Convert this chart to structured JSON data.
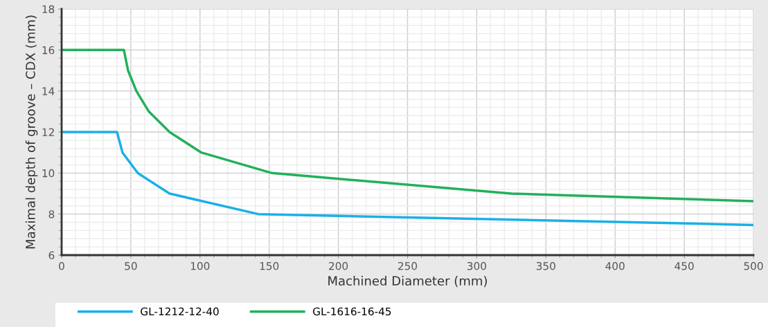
{
  "chart_data": {
    "type": "line",
    "xlabel": "Machined Diameter (mm)",
    "ylabel": "Maximal depth of groove – CDX (mm)",
    "xlim": [
      0,
      500
    ],
    "xticks": [
      0,
      50,
      100,
      150,
      200,
      250,
      300,
      350,
      400,
      450,
      500
    ],
    "ylim": [
      6,
      18
    ],
    "yticks": [
      6,
      8,
      10,
      12,
      14,
      16,
      18
    ],
    "grid": true,
    "legend": "bottom left",
    "marker": "none",
    "line_style": "solid",
    "series": [
      {
        "name": "GL-1212-12-40",
        "color": "#1ab0e8",
        "x": [
          0,
          40,
          44,
          55,
          78,
          142,
          500
        ],
        "values": [
          12,
          12,
          11,
          10,
          9,
          8,
          7.47
        ]
      },
      {
        "name": "GL-1616-16-45",
        "color": "#22b05a",
        "x": [
          0,
          45,
          48,
          54,
          63,
          78,
          101,
          152,
          325,
          500
        ],
        "values": [
          16,
          16,
          15,
          14,
          13,
          12,
          11,
          10,
          9,
          8.63
        ]
      }
    ]
  }
}
